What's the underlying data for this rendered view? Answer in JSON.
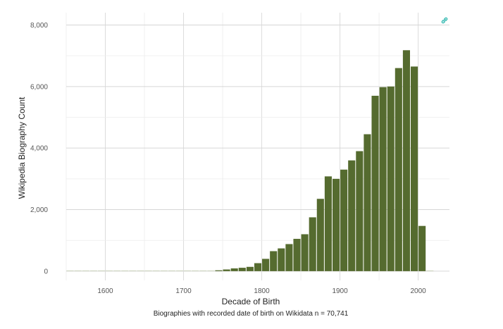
{
  "chart_data": {
    "type": "bar",
    "xlabel": "Decade of Birth",
    "ylabel": "Wikipedia Biography Count",
    "caption": "Biographies with recorded date of birth on Wikidata n = 70,741",
    "x_ticks": [
      1600,
      1700,
      1800,
      1900,
      2000
    ],
    "y_ticks": [
      0,
      2000,
      4000,
      6000,
      8000
    ],
    "y_tick_labels": [
      "0",
      "2,000",
      "4,000",
      "6,000",
      "8,000"
    ],
    "xlim": [
      1550,
      2040
    ],
    "ylim": [
      -300,
      8400
    ],
    "bin_width": 10,
    "grid": true,
    "bar_color": "#556b2f",
    "bins": [
      1550,
      1560,
      1570,
      1580,
      1590,
      1600,
      1610,
      1620,
      1630,
      1640,
      1650,
      1660,
      1670,
      1680,
      1690,
      1700,
      1710,
      1720,
      1730,
      1740,
      1750,
      1760,
      1770,
      1780,
      1790,
      1800,
      1810,
      1820,
      1830,
      1840,
      1850,
      1860,
      1870,
      1880,
      1890,
      1900,
      1910,
      1920,
      1930,
      1940,
      1950,
      1960,
      1970,
      1980,
      1990,
      2000,
      2010
    ],
    "values": [
      3,
      2,
      3,
      2,
      3,
      3,
      2,
      3,
      4,
      4,
      5,
      5,
      5,
      6,
      6,
      7,
      8,
      10,
      18,
      28,
      55,
      90,
      110,
      140,
      260,
      400,
      650,
      740,
      880,
      1050,
      1200,
      1750,
      2350,
      3080,
      3000,
      3300,
      3600,
      3900,
      4450,
      5700,
      5980,
      6000,
      6600,
      7180,
      6650,
      1470,
      5
    ]
  },
  "link_icon": "link-icon",
  "link_icon_color": "#3cbcb4"
}
